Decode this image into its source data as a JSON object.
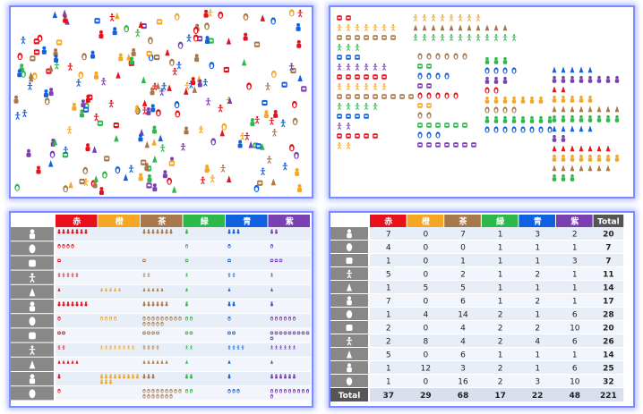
{
  "colors": {
    "red": "#e8101a",
    "orange": "#f5a623",
    "brown": "#a8774a",
    "green": "#2db84a",
    "blue": "#1060e0",
    "purple": "#7a3fb0",
    "label_bg": "#888888",
    "total_bg": "#555555"
  },
  "icons": [
    "penguin-icon",
    "robot-icon",
    "android-icon",
    "bear-icon",
    "panda-icon",
    "person-icon",
    "linux-tux-icon",
    "user-icon",
    "hat-person-icon",
    "reddit-alien-icon",
    "pig-icon"
  ],
  "legend": {
    "columns": [
      "赤",
      "橙",
      "茶",
      "緑",
      "青",
      "紫"
    ]
  },
  "table": {
    "columns": [
      "赤",
      "橙",
      "茶",
      "緑",
      "青",
      "紫"
    ],
    "total_header": "Total",
    "total_label": "Total",
    "rows": [
      {
        "icon": "penguin-icon",
        "values": [
          7,
          0,
          7,
          1,
          3,
          2
        ],
        "total": 20
      },
      {
        "icon": "robot-icon",
        "values": [
          4,
          0,
          0,
          1,
          1,
          1
        ],
        "total": 7
      },
      {
        "icon": "android-icon",
        "values": [
          1,
          0,
          1,
          1,
          1,
          3
        ],
        "total": 7
      },
      {
        "icon": "bear-icon",
        "values": [
          5,
          0,
          2,
          1,
          2,
          1
        ],
        "total": 11
      },
      {
        "icon": "panda-icon",
        "values": [
          1,
          5,
          5,
          1,
          1,
          1
        ],
        "total": 14
      },
      {
        "icon": "person-icon",
        "values": [
          7,
          0,
          6,
          1,
          2,
          1
        ],
        "total": 17
      },
      {
        "icon": "linux-tux-icon",
        "values": [
          1,
          4,
          14,
          2,
          1,
          6
        ],
        "total": 28
      },
      {
        "icon": "user-icon",
        "values": [
          2,
          0,
          4,
          2,
          2,
          10
        ],
        "total": 20
      },
      {
        "icon": "hat-person-icon",
        "values": [
          2,
          8,
          4,
          2,
          4,
          6
        ],
        "total": 26
      },
      {
        "icon": "reddit-alien-icon",
        "values": [
          5,
          0,
          6,
          1,
          1,
          1
        ],
        "total": 14
      },
      {
        "icon": "pig-icon",
        "values": [
          1,
          12,
          3,
          2,
          1,
          6
        ],
        "total": 25
      },
      {
        "icon": "pig-icon",
        "values": [
          1,
          0,
          16,
          2,
          3,
          10
        ],
        "total": 32
      }
    ],
    "totals": [
      37,
      29,
      68,
      17,
      22,
      48
    ],
    "grand_total": 221
  }
}
